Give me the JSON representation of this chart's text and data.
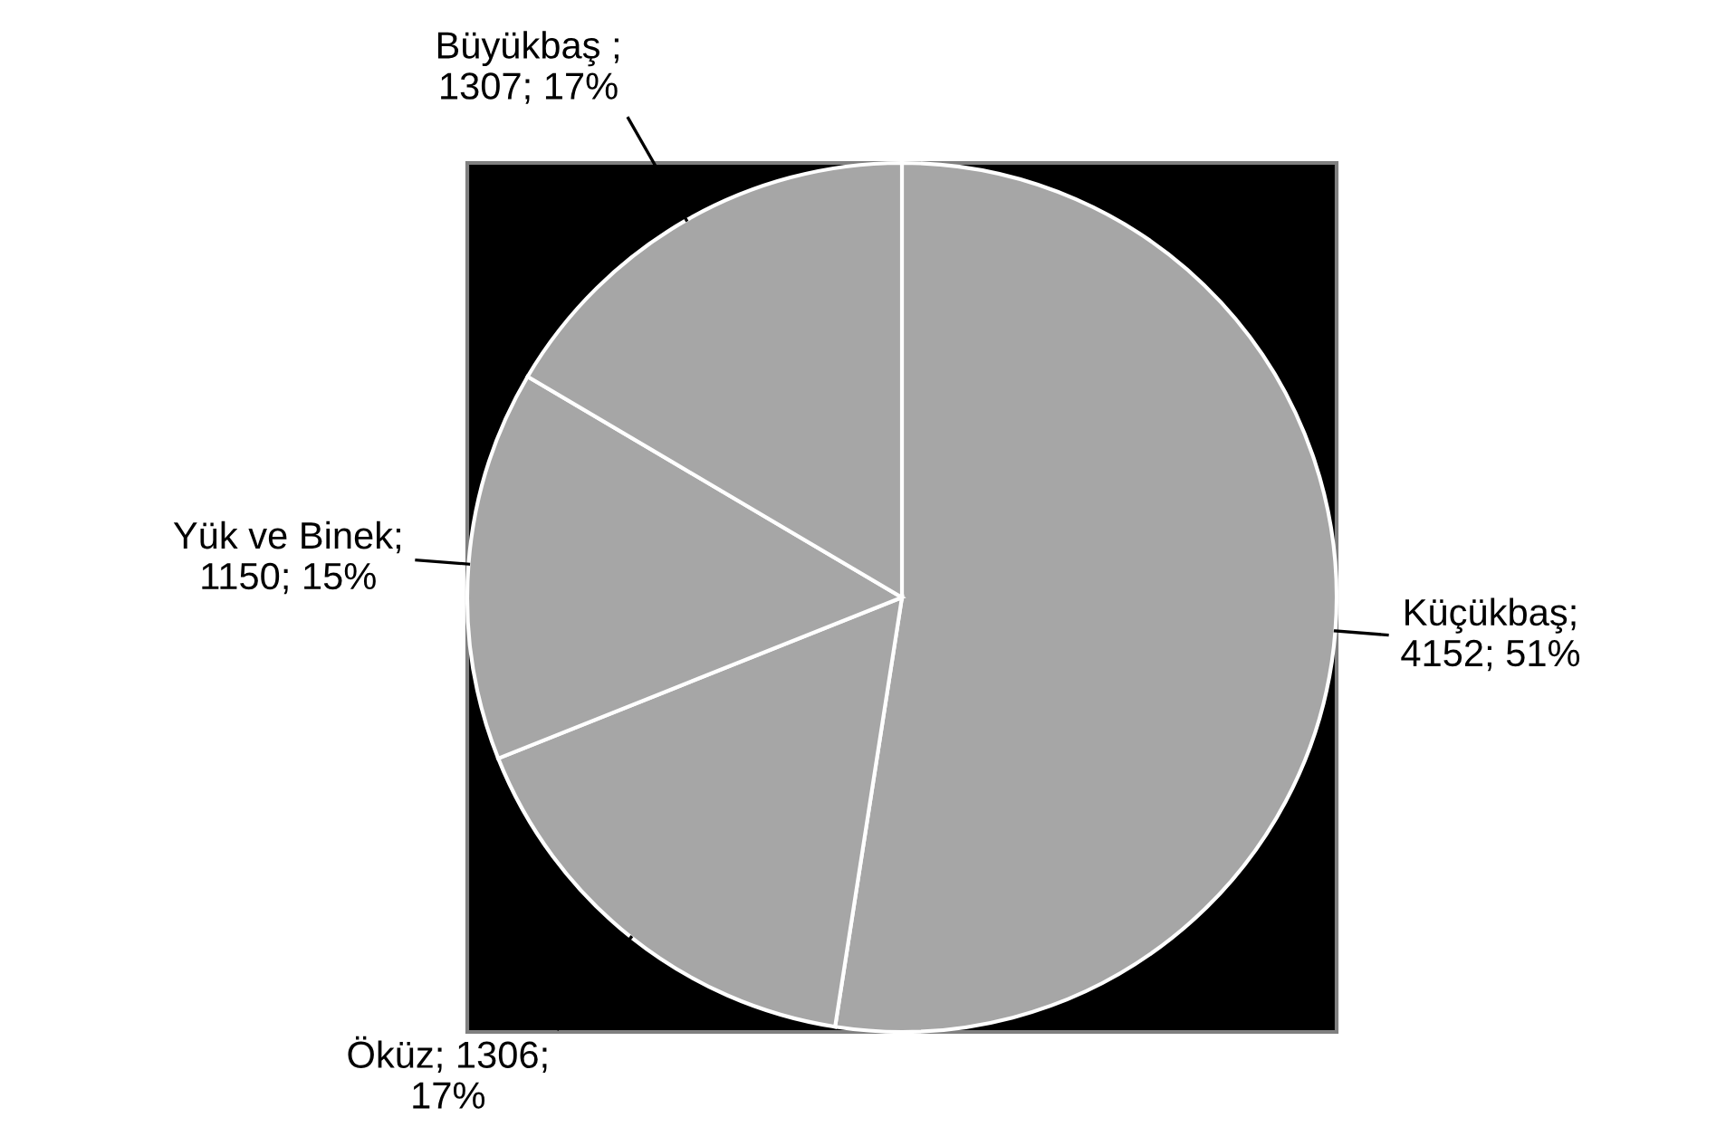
{
  "chart_data": {
    "type": "pie",
    "categories": [
      "Küçükbaş",
      "Öküz",
      "Yük ve Binek",
      "Büyükbaş"
    ],
    "values": [
      4152,
      1306,
      1150,
      1307
    ],
    "value_labels": [
      ";\n4152; 51%",
      "; 1306;\n17%",
      ";\n1150; 15%",
      " ;\n1307; 17%"
    ],
    "colors": [
      "#a6a6a6",
      "#a6a6a6",
      "#a6a6a6",
      "#a6a6a6"
    ]
  }
}
